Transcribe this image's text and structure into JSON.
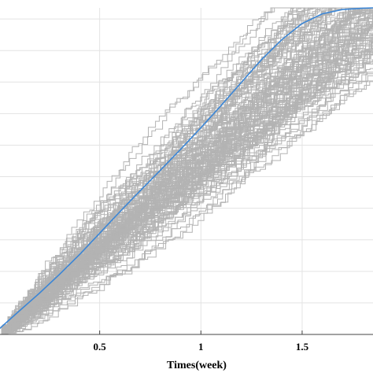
{
  "chart_data": {
    "type": "line",
    "title": "",
    "xlabel": "Times(week)",
    "ylabel": "",
    "xlim": [
      0,
      1.85
    ],
    "ylim": [
      0,
      1
    ],
    "grid": true,
    "x_ticks": [
      0.5,
      1,
      1.5
    ],
    "x_tick_labels": [
      "0.5",
      "1",
      "1.5"
    ],
    "y_grid_values": [
      0.0966,
      0.1932,
      0.2898,
      0.3864,
      0.483,
      0.5796,
      0.6762,
      0.7728,
      0.8694,
      0.966
    ],
    "colors": {
      "mean_line": "#3b86d6",
      "sample_paths": "#b3b3b3",
      "grid": "#e3e3e3"
    },
    "series": [
      {
        "role": "mean",
        "x": [
          0,
          0.1,
          0.2,
          0.3,
          0.4,
          0.5,
          0.6,
          0.7,
          0.8,
          0.9,
          1.0,
          1.1,
          1.2,
          1.3,
          1.4,
          1.5,
          1.6,
          1.7,
          1.8,
          1.85
        ],
        "y": [
          0.015,
          0.07,
          0.125,
          0.183,
          0.244,
          0.31,
          0.376,
          0.44,
          0.503,
          0.567,
          0.633,
          0.701,
          0.772,
          0.842,
          0.903,
          0.952,
          0.982,
          0.995,
          0.999,
          1.0
        ]
      }
    ],
    "sample_paths": {
      "count": 120,
      "description_free": true,
      "start": [
        0,
        0
      ],
      "end_time_range": [
        1.5,
        2.15
      ],
      "cap": 1.0
    }
  }
}
